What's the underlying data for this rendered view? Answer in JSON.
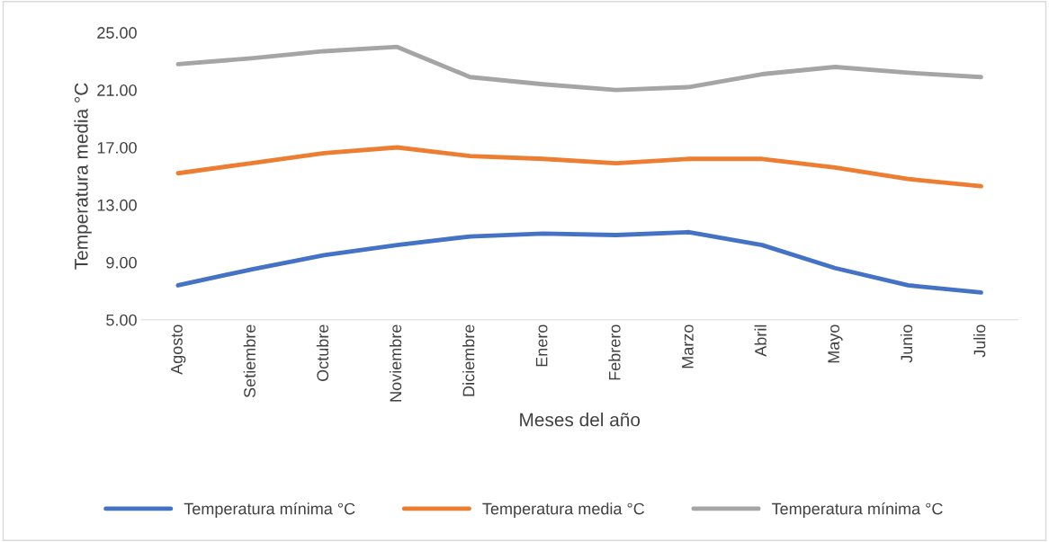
{
  "chart_data": {
    "type": "line",
    "xlabel": "Meses del año",
    "ylabel": "Temperatura media °C",
    "categories": [
      "Agosto",
      "Setiembre",
      "Octubre",
      "Noviembre",
      "Diciembre",
      "Enero",
      "Febrero",
      "Marzo",
      "Abril",
      "Mayo",
      "Junio",
      "Julio"
    ],
    "series": [
      {
        "name": "Temperatura mínima °C",
        "color": "#4472c4",
        "values": [
          7.4,
          8.5,
          9.5,
          10.2,
          10.8,
          11.0,
          10.9,
          11.1,
          10.2,
          8.6,
          7.4,
          6.9
        ]
      },
      {
        "name": "Temperatura media °C",
        "color": "#ed7d31",
        "values": [
          15.2,
          15.9,
          16.6,
          17.0,
          16.4,
          16.2,
          15.9,
          16.2,
          16.2,
          15.6,
          14.8,
          14.3
        ]
      },
      {
        "name": "Temperatura mínima °C",
        "color": "#a5a5a5",
        "values": [
          22.8,
          23.2,
          23.7,
          24.0,
          21.9,
          21.4,
          21.0,
          21.2,
          22.1,
          22.6,
          22.2,
          21.9
        ]
      }
    ],
    "ylim": [
      5,
      25
    ],
    "yticks": [
      {
        "value": 5,
        "label": "5.00"
      },
      {
        "value": 9,
        "label": "9.00"
      },
      {
        "value": 13,
        "label": "13.00"
      },
      {
        "value": 17,
        "label": "17.00"
      },
      {
        "value": 21,
        "label": "21.00"
      },
      {
        "value": 25,
        "label": "25.00"
      }
    ],
    "grid": false,
    "legend": "bottom",
    "line_style": "solid",
    "marker": "none"
  }
}
